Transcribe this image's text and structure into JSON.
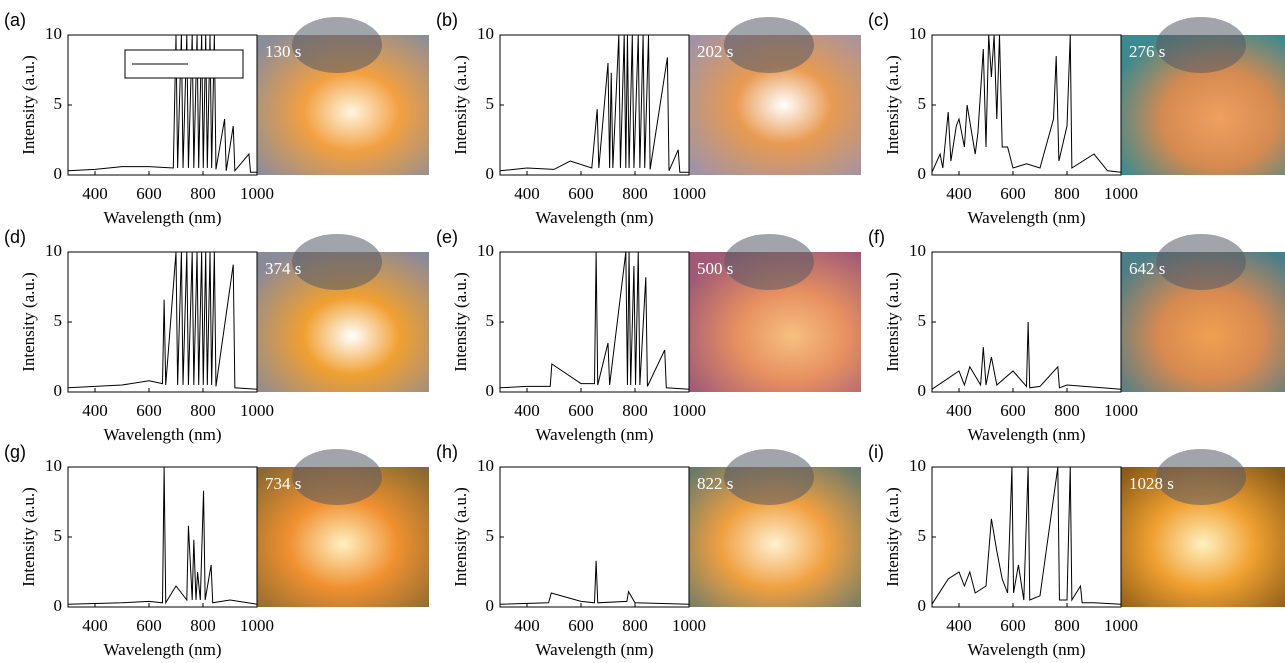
{
  "chart_data": [
    {
      "type": "line",
      "panel": "(a)",
      "time": "130 s",
      "xlabel": "Wavelength (nm)",
      "ylabel": "Intensity (a.u.)",
      "xlim": [
        300,
        1000
      ],
      "ylim": [
        0,
        10
      ],
      "xticks": [
        400,
        600,
        800,
        1000
      ],
      "yticks": [
        0,
        5,
        10
      ],
      "color": "#000000",
      "x": [
        300,
        400,
        500,
        600,
        690,
        700,
        706,
        720,
        726,
        740,
        746,
        760,
        766,
        778,
        784,
        795,
        801,
        810,
        816,
        826,
        832,
        842,
        848,
        880,
        886,
        912,
        918,
        970,
        976,
        1000
      ],
      "values": [
        0.3,
        0.4,
        0.6,
        0.6,
        0.5,
        10,
        0.5,
        10,
        0.5,
        10,
        0.5,
        10,
        0.5,
        10,
        0.5,
        10,
        0.5,
        10,
        0.5,
        10,
        0.5,
        10,
        0.4,
        4,
        0.3,
        3.5,
        0.3,
        1.5,
        0.2,
        0.2
      ]
    },
    {
      "type": "line",
      "panel": "(b)",
      "time": "202 s",
      "xlabel": "Wavelength (nm)",
      "ylabel": "Intensity (a.u.)",
      "xlim": [
        300,
        1000
      ],
      "ylim": [
        0,
        10
      ],
      "xticks": [
        400,
        600,
        800,
        1000
      ],
      "yticks": [
        0,
        5,
        10
      ],
      "color": "#000000",
      "x": [
        300,
        400,
        500,
        560,
        640,
        660,
        666,
        700,
        706,
        712,
        718,
        740,
        746,
        760,
        766,
        772,
        778,
        790,
        796,
        812,
        818,
        830,
        836,
        850,
        856,
        920,
        926,
        960,
        966,
        1000
      ],
      "values": [
        0.3,
        0.5,
        0.4,
        1,
        0.5,
        4.7,
        0.5,
        8,
        0.5,
        7.3,
        0.5,
        10,
        0.5,
        10,
        0.5,
        10,
        0.5,
        10,
        0.5,
        10,
        0.5,
        10,
        0.5,
        10,
        0.4,
        8.4,
        0.3,
        1.8,
        0.2,
        0.2
      ]
    },
    {
      "type": "line",
      "panel": "(c)",
      "time": "276 s",
      "xlabel": "Wavelength (nm)",
      "ylabel": "Intensity (a.u.)",
      "xlim": [
        300,
        1000
      ],
      "ylim": [
        0,
        10
      ],
      "xticks": [
        400,
        600,
        800,
        1000
      ],
      "yticks": [
        0,
        5,
        10
      ],
      "color": "#000000",
      "x": [
        300,
        330,
        340,
        360,
        370,
        390,
        400,
        420,
        430,
        460,
        470,
        490,
        500,
        510,
        520,
        530,
        540,
        550,
        560,
        580,
        600,
        650,
        700,
        750,
        760,
        770,
        800,
        812,
        818,
        900,
        950,
        1000
      ],
      "values": [
        0.2,
        1.5,
        0.5,
        4.5,
        1,
        3.5,
        4,
        2,
        5,
        1.5,
        3,
        9,
        2,
        10,
        7,
        10,
        4,
        10,
        2,
        2,
        0.5,
        0.8,
        0.5,
        4,
        8.5,
        1,
        3.5,
        10,
        0.5,
        1.5,
        0.3,
        0.2
      ]
    },
    {
      "type": "line",
      "panel": "(d)",
      "time": "374 s",
      "xlabel": "Wavelength (nm)",
      "ylabel": "Intensity (a.u.)",
      "xlim": [
        300,
        1000
      ],
      "ylim": [
        0,
        10
      ],
      "xticks": [
        400,
        600,
        800,
        1000
      ],
      "yticks": [
        0,
        5,
        10
      ],
      "color": "#000000",
      "x": [
        300,
        400,
        500,
        600,
        650,
        656,
        662,
        700,
        706,
        720,
        726,
        740,
        746,
        760,
        766,
        778,
        784,
        795,
        801,
        810,
        816,
        826,
        832,
        842,
        848,
        912,
        918,
        1000
      ],
      "values": [
        0.3,
        0.4,
        0.5,
        0.8,
        0.6,
        6.6,
        0.5,
        10,
        0.5,
        10,
        0.5,
        10,
        0.5,
        10,
        0.5,
        10,
        0.5,
        10,
        0.5,
        10,
        0.5,
        10,
        0.5,
        10,
        0.4,
        9.1,
        0.3,
        0.2
      ]
    },
    {
      "type": "line",
      "panel": "(e)",
      "time": "500 s",
      "xlabel": "Wavelength (nm)",
      "ylabel": "Intensity (a.u.)",
      "xlim": [
        300,
        1000
      ],
      "ylim": [
        0,
        10
      ],
      "xticks": [
        400,
        600,
        800,
        1000
      ],
      "yticks": [
        0,
        5,
        10
      ],
      "color": "#000000",
      "x": [
        300,
        400,
        486,
        492,
        600,
        650,
        656,
        662,
        700,
        706,
        766,
        772,
        778,
        784,
        796,
        802,
        812,
        818,
        840,
        846,
        910,
        916,
        1000
      ],
      "values": [
        0.3,
        0.4,
        0.4,
        2,
        0.6,
        0.6,
        10,
        0.5,
        3.5,
        0.5,
        10,
        0.5,
        10,
        0.5,
        9,
        0.5,
        10,
        0.5,
        8.2,
        0.4,
        3,
        0.3,
        0.2
      ]
    },
    {
      "type": "line",
      "panel": "(f)",
      "time": "642 s",
      "xlabel": "Wavelength (nm)",
      "ylabel": "Intensity (a.u.)",
      "xlim": [
        300,
        1000
      ],
      "ylim": [
        0,
        10
      ],
      "xticks": [
        400,
        600,
        800,
        1000
      ],
      "yticks": [
        0,
        5,
        10
      ],
      "color": "#000000",
      "x": [
        300,
        400,
        420,
        440,
        480,
        490,
        500,
        520,
        540,
        600,
        650,
        656,
        662,
        700,
        766,
        772,
        800,
        1000
      ],
      "values": [
        0.2,
        1.5,
        0.5,
        1.8,
        0.5,
        3.2,
        0.5,
        2.5,
        0.5,
        1.5,
        0.4,
        5,
        0.3,
        0.4,
        1.8,
        0.3,
        0.5,
        0.2
      ]
    },
    {
      "type": "line",
      "panel": "(g)",
      "time": "734 s",
      "xlabel": "Wavelength (nm)",
      "ylabel": "Intensity (a.u.)",
      "xlim": [
        300,
        1000
      ],
      "ylim": [
        0,
        10
      ],
      "xticks": [
        400,
        600,
        800,
        1000
      ],
      "yticks": [
        0,
        5,
        10
      ],
      "color": "#000000",
      "x": [
        300,
        500,
        600,
        650,
        656,
        662,
        700,
        740,
        746,
        760,
        766,
        774,
        780,
        790,
        802,
        808,
        830,
        836,
        900,
        1000
      ],
      "values": [
        0.2,
        0.3,
        0.4,
        0.3,
        10,
        0.3,
        1.5,
        0.5,
        5.8,
        0.5,
        4.8,
        0.5,
        2.5,
        0.5,
        8.3,
        0.5,
        3,
        0.3,
        0.5,
        0.2
      ]
    },
    {
      "type": "line",
      "panel": "(h)",
      "time": "822 s",
      "xlabel": "Wavelength (nm)",
      "ylabel": "Intensity (a.u.)",
      "xlim": [
        300,
        1000
      ],
      "ylim": [
        0,
        10
      ],
      "xticks": [
        400,
        600,
        800,
        1000
      ],
      "yticks": [
        0,
        5,
        10
      ],
      "color": "#000000",
      "x": [
        300,
        480,
        490,
        600,
        650,
        656,
        662,
        770,
        776,
        800,
        1000
      ],
      "values": [
        0.2,
        0.3,
        1,
        0.4,
        0.3,
        3.3,
        0.3,
        0.4,
        1.1,
        0.3,
        0.2
      ]
    },
    {
      "type": "line",
      "panel": "(i)",
      "time": "1028 s",
      "xlabel": "Wavelength (nm)",
      "ylabel": "Intensity (a.u.)",
      "xlim": [
        300,
        1000
      ],
      "ylim": [
        0,
        10
      ],
      "xticks": [
        400,
        600,
        800,
        1000
      ],
      "yticks": [
        0,
        5,
        10
      ],
      "color": "#000000",
      "x": [
        300,
        360,
        400,
        420,
        440,
        460,
        500,
        520,
        540,
        560,
        580,
        596,
        602,
        620,
        640,
        656,
        662,
        700,
        766,
        772,
        800,
        812,
        818,
        850,
        856,
        900,
        1000
      ],
      "values": [
        0.2,
        2,
        2.5,
        1.5,
        2.5,
        1,
        1.5,
        6.3,
        4,
        2,
        1,
        10,
        1,
        3,
        0.5,
        10,
        0.5,
        0.8,
        10,
        0.5,
        0.5,
        10,
        0.5,
        1.5,
        0.3,
        0.3,
        0.2
      ]
    }
  ]
}
